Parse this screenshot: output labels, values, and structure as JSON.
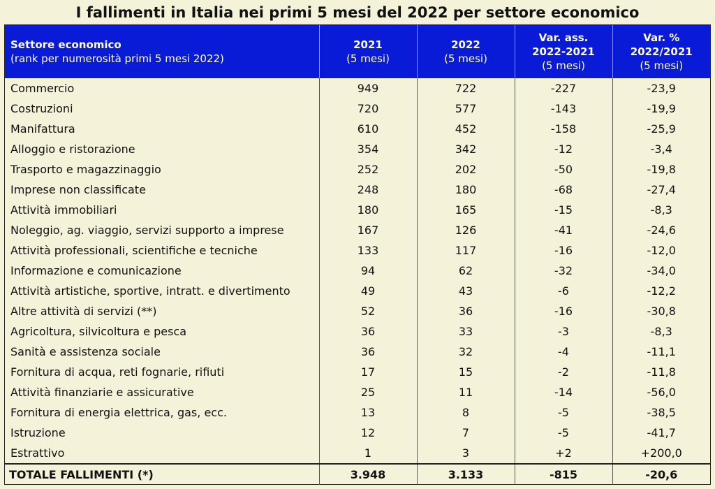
{
  "title": "I fallimenti in Italia nei primi 5 mesi del 2022 per settore economico",
  "header": {
    "sector_label": "Settore economico",
    "sector_sub": "(rank per numerosità primi 5 mesi 2022)",
    "col_2021": "2021",
    "col_2021_sub": "(5 mesi)",
    "col_2022": "2022",
    "col_2022_sub": "(5 mesi)",
    "col_varass_1": "Var. ass.",
    "col_varass_2": "2022-2021",
    "col_varass_sub": "(5 mesi)",
    "col_varpct_1": "Var. %",
    "col_varpct_2": "2022/2021",
    "col_varpct_sub": "(5 mesi)"
  },
  "rows": [
    {
      "sector": "Commercio",
      "y2021": "949",
      "y2022": "722",
      "var_ass": "-227",
      "var_pct": "-23,9"
    },
    {
      "sector": "Costruzioni",
      "y2021": "720",
      "y2022": "577",
      "var_ass": "-143",
      "var_pct": "-19,9"
    },
    {
      "sector": "Manifattura",
      "y2021": "610",
      "y2022": "452",
      "var_ass": "-158",
      "var_pct": "-25,9"
    },
    {
      "sector": "Alloggio e ristorazione",
      "y2021": "354",
      "y2022": "342",
      "var_ass": "-12",
      "var_pct": "-3,4"
    },
    {
      "sector": "Trasporto e magazzinaggio",
      "y2021": "252",
      "y2022": "202",
      "var_ass": "-50",
      "var_pct": "-19,8"
    },
    {
      "sector": "Imprese non classificate",
      "y2021": "248",
      "y2022": "180",
      "var_ass": "-68",
      "var_pct": "-27,4"
    },
    {
      "sector": "Attività immobiliari",
      "y2021": "180",
      "y2022": "165",
      "var_ass": "-15",
      "var_pct": "-8,3"
    },
    {
      "sector": "Noleggio, ag. viaggio, servizi supporto a imprese",
      "y2021": "167",
      "y2022": "126",
      "var_ass": "-41",
      "var_pct": "-24,6"
    },
    {
      "sector": "Attività professionali, scientifiche e tecniche",
      "y2021": "133",
      "y2022": "117",
      "var_ass": "-16",
      "var_pct": "-12,0"
    },
    {
      "sector": "Informazione e comunicazione",
      "y2021": "94",
      "y2022": "62",
      "var_ass": "-32",
      "var_pct": "-34,0"
    },
    {
      "sector": "Attività artistiche, sportive, intratt. e divertimento",
      "y2021": "49",
      "y2022": "43",
      "var_ass": "-6",
      "var_pct": "-12,2"
    },
    {
      "sector": "Altre attività di servizi (**)",
      "y2021": "52",
      "y2022": "36",
      "var_ass": "-16",
      "var_pct": "-30,8"
    },
    {
      "sector": "Agricoltura, silvicoltura e pesca",
      "y2021": "36",
      "y2022": "33",
      "var_ass": "-3",
      "var_pct": "-8,3"
    },
    {
      "sector": "Sanità e assistenza sociale",
      "y2021": "36",
      "y2022": "32",
      "var_ass": "-4",
      "var_pct": "-11,1"
    },
    {
      "sector": "Fornitura di acqua, reti fognarie, rifiuti",
      "y2021": "17",
      "y2022": "15",
      "var_ass": "-2",
      "var_pct": "-11,8"
    },
    {
      "sector": "Attività finanziarie e assicurative",
      "y2021": "25",
      "y2022": "11",
      "var_ass": "-14",
      "var_pct": "-56,0"
    },
    {
      "sector": "Fornitura di energia elettrica, gas, ecc.",
      "y2021": "13",
      "y2022": "8",
      "var_ass": "-5",
      "var_pct": "-38,5"
    },
    {
      "sector": "Istruzione",
      "y2021": "12",
      "y2022": "7",
      "var_ass": "-5",
      "var_pct": "-41,7"
    },
    {
      "sector": "Estrattivo",
      "y2021": "1",
      "y2022": "3",
      "var_ass": "+2",
      "var_pct": "+200,0"
    }
  ],
  "total": {
    "sector": "TOTALE FALLIMENTI (*)",
    "y2021": "3.948",
    "y2022": "3.133",
    "var_ass": "-815",
    "var_pct": "-20,6"
  },
  "colors": {
    "header_bg": "#0a1bd8",
    "page_bg": "#f5f2da"
  }
}
